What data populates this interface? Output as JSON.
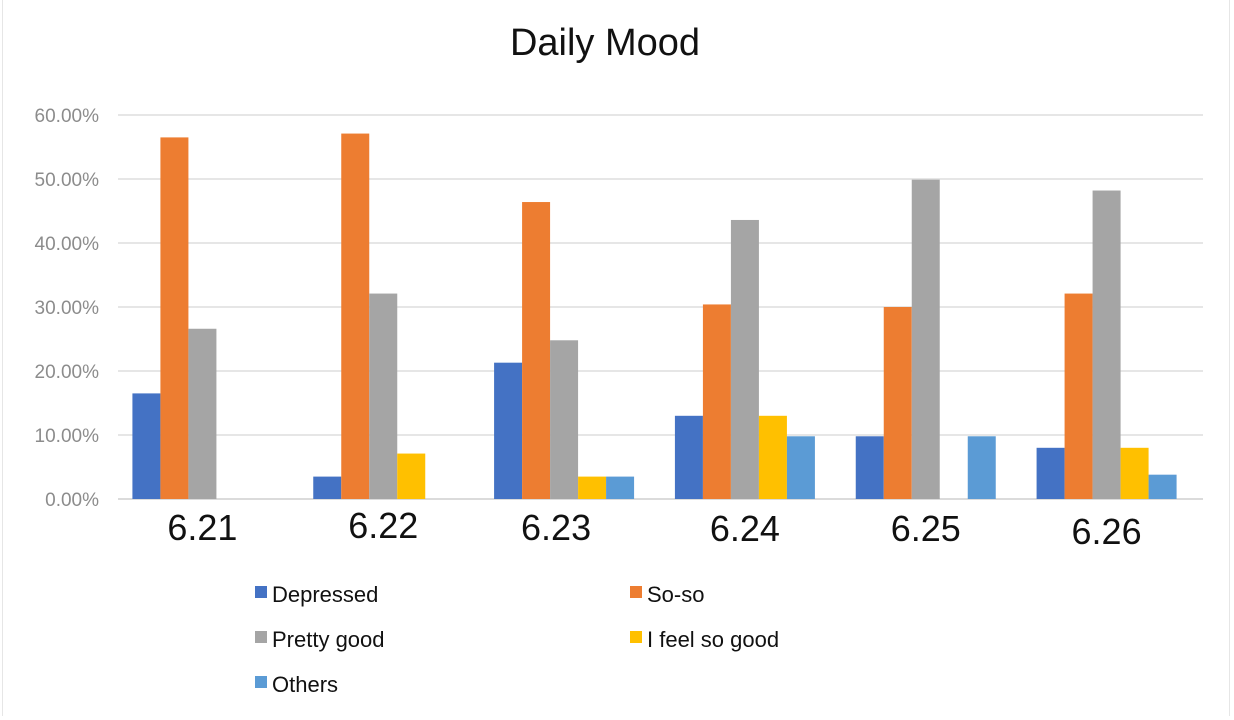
{
  "chart_data": {
    "type": "bar",
    "title": "Daily Mood",
    "xlabel": "",
    "ylabel": "",
    "categories": [
      "6.21",
      "6.22",
      "6.23",
      "6.24",
      "6.25",
      "6.26"
    ],
    "series": [
      {
        "name": "Depressed",
        "color": "#4472c4",
        "values": [
          16.5,
          3.5,
          21.3,
          13.0,
          9.8,
          8.0
        ]
      },
      {
        "name": "So-so",
        "color": "#ed7d31",
        "values": [
          56.5,
          57.1,
          46.4,
          30.4,
          30.0,
          32.1
        ]
      },
      {
        "name": "Pretty good",
        "color": "#a5a5a5",
        "values": [
          26.6,
          32.1,
          24.8,
          43.6,
          49.9,
          48.2
        ]
      },
      {
        "name": "I feel so good",
        "color": "#ffc000",
        "values": [
          0,
          7.1,
          3.5,
          13.0,
          0,
          8.0
        ]
      },
      {
        "name": "Others",
        "color": "#5b9bd5",
        "values": [
          0,
          0,
          3.5,
          9.8,
          9.8,
          3.8
        ]
      }
    ],
    "y_ticks": [
      "0.00%",
      "10.00%",
      "20.00%",
      "30.00%",
      "40.00%",
      "50.00%",
      "60.00%"
    ],
    "ylim": [
      0,
      60
    ],
    "grid": true,
    "legend_position": "bottom"
  }
}
